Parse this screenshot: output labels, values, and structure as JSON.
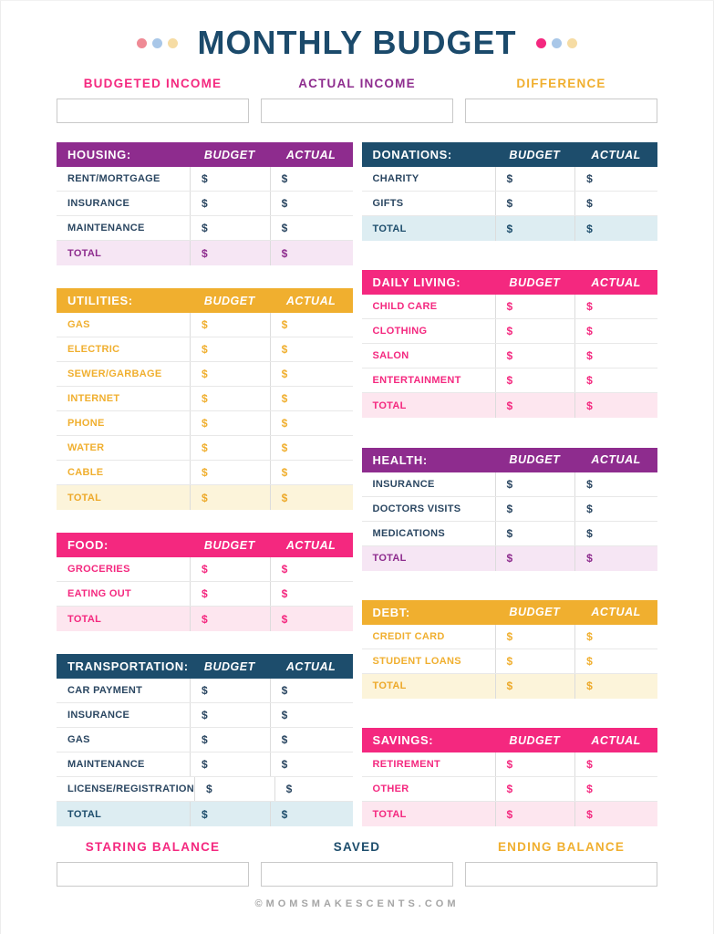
{
  "page": {
    "title": "MONTHLY BUDGET",
    "footer": "©MOMSMAKESCENTS.COM"
  },
  "decor": {
    "left_dots": [
      "#ef8a95",
      "#a9c7e8",
      "#f6dca4"
    ],
    "right_dots": [
      "#f4287f",
      "#a9c7e8",
      "#f6dca4"
    ]
  },
  "column_headers": {
    "budget": "BUDGET",
    "actual": "ACTUAL"
  },
  "currency_symbol": "$",
  "total_label": "TOTAL",
  "income_row": [
    {
      "label": "BUDGETED INCOME",
      "color": "#f4287f",
      "value": ""
    },
    {
      "label": "ACTUAL INCOME",
      "color": "#8e2c8e",
      "value": ""
    },
    {
      "label": "DIFFERENCE",
      "color": "#f0af2f",
      "value": ""
    }
  ],
  "balance_row": [
    {
      "label": "STARING BALANCE",
      "color": "#f4287f",
      "value": ""
    },
    {
      "label": "SAVED",
      "color": "#1d4d6c",
      "value": ""
    },
    {
      "label": "ENDING BALANCE",
      "color": "#f0af2f",
      "value": ""
    }
  ],
  "themes": {
    "purple": {
      "header_bg": "#8e2c8e",
      "row_label": "#2a4661",
      "row_symbol": "#2a4661",
      "total_bg": "#f6e6f4",
      "total_text": "#8e2c8e"
    },
    "yellow": {
      "header_bg": "#f0af2f",
      "row_label": "#f0af2f",
      "row_symbol": "#f0af2f",
      "total_bg": "#fcf4da",
      "total_text": "#eda92a"
    },
    "pink": {
      "header_bg": "#f4287f",
      "row_label": "#f4287f",
      "row_symbol": "#f4287f",
      "total_bg": "#fde6ef",
      "total_text": "#f4287f"
    },
    "navy": {
      "header_bg": "#1d4d6c",
      "row_label": "#2a4661",
      "row_symbol": "#2a4661",
      "total_bg": "#ddedf2",
      "total_text": "#1d4d6c"
    }
  },
  "sections": {
    "left": [
      {
        "title": "HOUSING:",
        "theme": "purple",
        "rows": [
          "RENT/MORTGAGE",
          "INSURANCE",
          "MAINTENANCE"
        ]
      },
      {
        "title": "UTILITIES:",
        "theme": "yellow",
        "rows": [
          "GAS",
          "ELECTRIC",
          "SEWER/GARBAGE",
          "INTERNET",
          "PHONE",
          "WATER",
          "CABLE"
        ]
      },
      {
        "title": "FOOD:",
        "theme": "pink",
        "rows": [
          "GROCERIES",
          "EATING OUT"
        ]
      },
      {
        "title": "TRANSPORTATION:",
        "theme": "navy",
        "rows": [
          "CAR PAYMENT",
          "INSURANCE",
          "GAS",
          "MAINTENANCE",
          "LICENSE/REGISTRATION"
        ]
      }
    ],
    "right": [
      {
        "title": "DONATIONS:",
        "theme": "navy",
        "rows": [
          "CHARITY",
          "GIFTS"
        ]
      },
      {
        "title": "DAILY LIVING:",
        "theme": "pink",
        "rows": [
          "CHILD CARE",
          "CLOTHING",
          "SALON",
          "ENTERTAINMENT"
        ]
      },
      {
        "title": "HEALTH:",
        "theme": "purple",
        "rows": [
          "INSURANCE",
          "DOCTORS VISITS",
          "MEDICATIONS"
        ]
      },
      {
        "title": "DEBT:",
        "theme": "yellow",
        "rows": [
          "CREDIT CARD",
          "STUDENT LOANS"
        ]
      },
      {
        "title": "SAVINGS:",
        "theme": "pink",
        "rows": [
          "RETIREMENT",
          "OTHER"
        ]
      }
    ]
  }
}
